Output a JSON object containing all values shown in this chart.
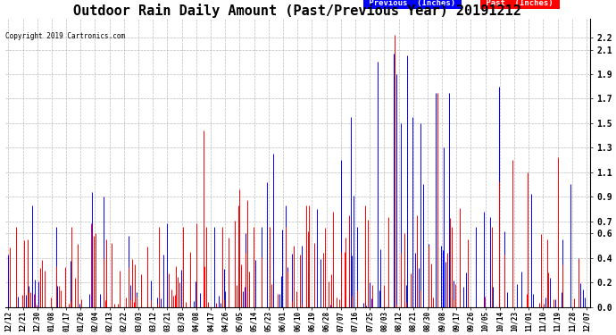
{
  "title": "Outdoor Rain Daily Amount (Past/Previous Year) 20191212",
  "copyright": "Copyright 2019 Cartronics.com",
  "legend_previous": "Previous  (Inches)",
  "legend_past": "Past  (Inches)",
  "yticks": [
    0.0,
    0.2,
    0.4,
    0.6,
    0.7,
    0.9,
    1.1,
    1.3,
    1.5,
    1.7,
    1.9,
    2.1,
    2.2
  ],
  "ylim": [
    0.0,
    2.35
  ],
  "background_color": "#ffffff",
  "grid_color": "#aaaaaa",
  "title_fontsize": 11,
  "tick_labels": [
    "12/12",
    "12/21",
    "12/30",
    "01/08",
    "01/17",
    "01/26",
    "02/04",
    "02/13",
    "02/22",
    "03/03",
    "03/12",
    "03/21",
    "03/30",
    "04/08",
    "04/17",
    "04/26",
    "05/05",
    "05/14",
    "05/23",
    "06/01",
    "06/10",
    "06/19",
    "06/28",
    "07/07",
    "07/16",
    "07/25",
    "08/03",
    "08/12",
    "08/21",
    "08/30",
    "09/08",
    "09/17",
    "09/26",
    "10/05",
    "10/14",
    "10/23",
    "11/01",
    "11/10",
    "11/19",
    "11/28",
    "12/07"
  ],
  "num_points": 366,
  "figsize": [
    6.9,
    3.75
  ],
  "dpi": 100
}
